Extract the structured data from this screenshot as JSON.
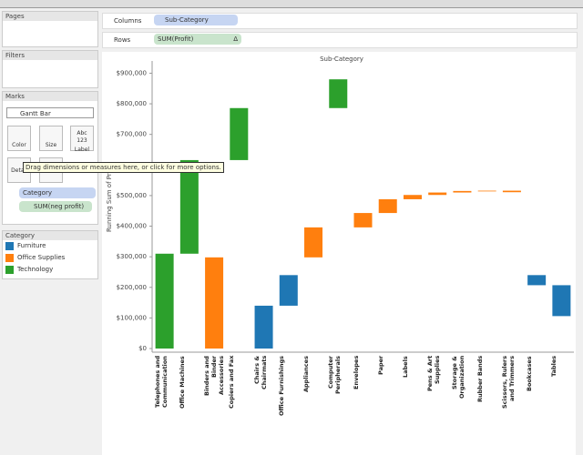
{
  "ui": {
    "pages_title": "Pages",
    "filters_title": "Filters",
    "marks_title": "Marks",
    "mark_type": "Gantt Bar",
    "mark_buttons": [
      "Color",
      "Size",
      "Label",
      "Detail"
    ],
    "label_icon": "Abc 123",
    "pills": [
      "Category",
      "SUM(neg profit)"
    ],
    "legend_title": "Category",
    "columns_label": "Columns",
    "columns_pill": "Sub-Category",
    "rows_label": "Rows",
    "rows_pill": "SUM(Profit)",
    "rows_pill_icon": "Δ",
    "tooltip": "Drag dimensions or measures here, or click for more options."
  },
  "chart_data": {
    "type": "waterfall",
    "title": "Sub-Category",
    "y_label": "Running Sum of Profit",
    "categories": [
      "Telephones and Communication",
      "Office Machines",
      "Binders and Binder Accessories",
      "Copiers and Fax",
      "Chairs & Chairmats",
      "Office Furnishings",
      "Appliances",
      "Computer Peripherals",
      "Envelopes",
      "Paper",
      "Labels",
      "Pens & Art Supplies",
      "Storage & Organization",
      "Rubber Bands",
      "Scissors, Rulers and Trimmers",
      "Bookcases",
      "Tables"
    ],
    "series": [
      {
        "name": "Furniture",
        "color": "#1f77b4",
        "values": [
          null,
          null,
          null,
          null,
          140000,
          100000,
          null,
          null,
          null,
          null,
          null,
          null,
          null,
          null,
          null,
          -33000,
          -101000
        ]
      },
      {
        "name": "Office Supplies",
        "color": "#ff7f0e",
        "values": [
          null,
          null,
          298000,
          null,
          null,
          null,
          98000,
          null,
          47000,
          45000,
          14000,
          8000,
          5000,
          1000,
          -5000,
          null,
          null
        ]
      },
      {
        "name": "Technology",
        "color": "#2ca02c",
        "values": [
          310000,
          306000,
          null,
          170000,
          null,
          null,
          null,
          94000,
          null,
          null,
          null,
          null,
          null,
          null,
          null,
          null,
          null
        ]
      }
    ],
    "ylim": [
      0,
      940000
    ],
    "yticks": [
      {
        "value": 0,
        "label": "$0"
      },
      {
        "value": 100000,
        "label": "$100,000"
      },
      {
        "value": 200000,
        "label": "$200,000"
      },
      {
        "value": 300000,
        "label": "$300,000"
      },
      {
        "value": 400000,
        "label": "$400,000"
      },
      {
        "value": 500000,
        "label": "$500,000"
      },
      {
        "value": 600000,
        "label": "$600,000"
      },
      {
        "value": 700000,
        "label": "$700,000"
      },
      {
        "value": 800000,
        "label": "$800,000"
      },
      {
        "value": 900000,
        "label": "$900,000"
      }
    ]
  }
}
